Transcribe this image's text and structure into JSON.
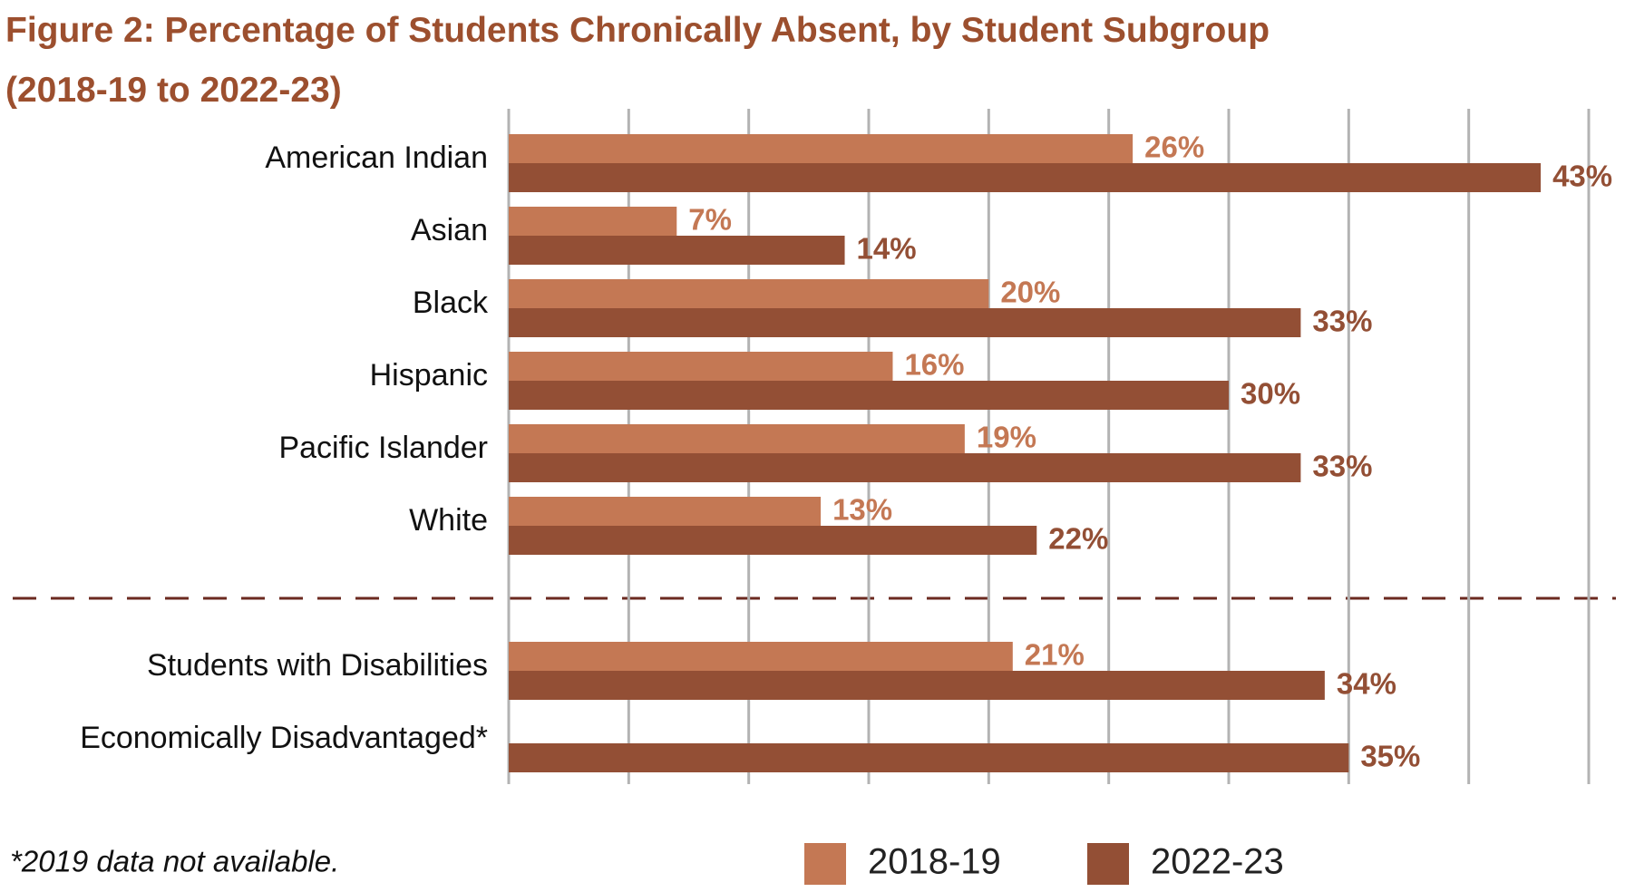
{
  "chart_data": {
    "type": "bar",
    "orientation": "horizontal",
    "title": "Figure 2: Percentage of Students Chronically Absent, by Student Subgroup",
    "subtitle": "(2018-19 to 2022-23)",
    "categories": [
      "American Indian",
      "Asian",
      "Black",
      "Hispanic",
      "Pacific Islander",
      "White",
      "Students with Disabilities",
      "Economically Disadvantaged*"
    ],
    "series": [
      {
        "name": "2018-19",
        "color": "#c47854",
        "values": [
          26,
          7,
          20,
          16,
          19,
          13,
          21,
          null
        ],
        "value_labels": [
          "26%",
          "7%",
          "20%",
          "16%",
          "19%",
          "13%",
          "21%",
          null
        ]
      },
      {
        "name": "2022-23",
        "color": "#934f35",
        "values": [
          43,
          14,
          33,
          30,
          33,
          22,
          34,
          35
        ],
        "value_labels": [
          "43%",
          "14%",
          "33%",
          "30%",
          "33%",
          "22%",
          "34%",
          "35%"
        ]
      }
    ],
    "xlim": [
      0,
      45
    ],
    "xticks": [
      0,
      5,
      10,
      15,
      20,
      25,
      30,
      35,
      40,
      45
    ],
    "grid": true,
    "legend": "bottom",
    "annotations": [
      "*2019 data not available."
    ]
  }
}
